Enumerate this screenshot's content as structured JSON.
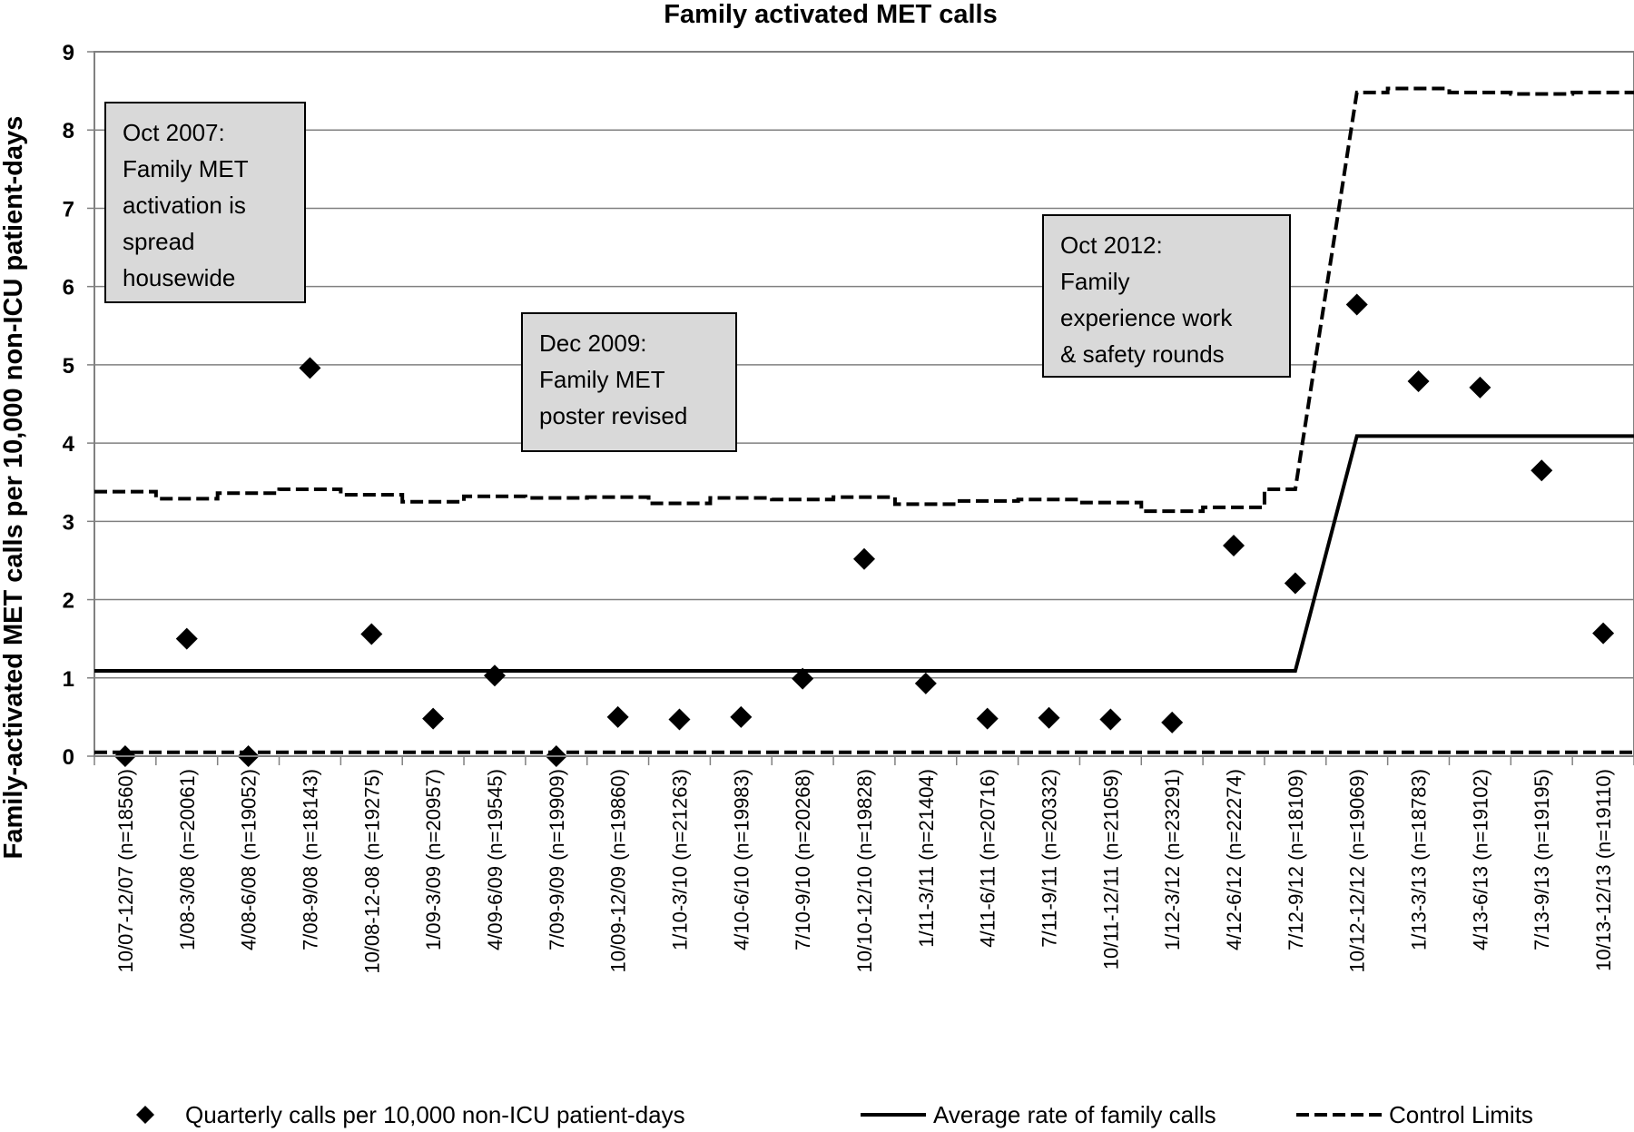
{
  "chart_data": {
    "type": "line",
    "title": "Family activated MET calls",
    "xlabel": "",
    "ylabel": "Family-activated MET calls per 10,000 non-ICU patient-days",
    "ylim": [
      0,
      9
    ],
    "yticks": [
      "0",
      "1",
      "2",
      "3",
      "4",
      "5",
      "6",
      "7",
      "8",
      "9"
    ],
    "grid": true,
    "legend_position": "bottom",
    "categories": [
      "10/07-12/07 (n=18560)",
      "1/08-3/08 (n=20061)",
      "4/08-6/08 (n=19052)",
      "7/08-9/08 (n=18143)",
      "10/08-12-08 (n=19275)",
      "1/09-3/09 (n=20957)",
      "4/09-6/09 (n=19545)",
      "7/09-9/09 (n=19909)",
      "10/09-12/09 (n=19860)",
      "1/10-3/10 (n=21263)",
      "4/10-6/10 (n=19983)",
      "7/10-9/10 (n=20268)",
      "10/10-12/10 (n=19828)",
      "1/11-3/11 (n=21404)",
      "4/11-6/11 (n=20716)",
      "7/11-9/11 (n=20332)",
      "10/11-12/11 (n=21059)",
      "1/12-3/12 (n=23291)",
      "4/12-6/12 (n=22274)",
      "7/12-9/12 (n=18109)",
      "10/12-12/12 (n=19069)",
      "1/13-3/13 (n=18783)",
      "4/13-6/13 (n=19102)",
      "7/13-9/13 (n=19195)",
      "10/13-12/13 (n=19110)"
    ],
    "series": [
      {
        "name": "Quarterly calls per 10,000 non-ICU patient-days",
        "style": "diamond-markers",
        "values": [
          0,
          1.5,
          0,
          4.96,
          1.56,
          0.48,
          1.03,
          0,
          0.5,
          0.47,
          0.5,
          0.99,
          2.52,
          0.93,
          0.48,
          0.49,
          0.47,
          0.43,
          2.69,
          2.21,
          5.77,
          4.79,
          4.71,
          3.65,
          1.57
        ]
      },
      {
        "name": "Average rate of family calls",
        "style": "solid-line",
        "values": [
          1.09,
          1.09,
          1.09,
          1.09,
          1.09,
          1.09,
          1.09,
          1.09,
          1.09,
          1.09,
          1.09,
          1.09,
          1.09,
          1.09,
          1.09,
          1.09,
          1.09,
          1.09,
          1.09,
          1.09,
          4.09,
          4.09,
          4.09,
          4.09,
          4.09
        ]
      },
      {
        "name": "Control Limits",
        "style": "dashed-line",
        "upper": [
          3.38,
          3.29,
          3.36,
          3.41,
          3.34,
          3.25,
          3.32,
          3.3,
          3.31,
          3.23,
          3.3,
          3.28,
          3.31,
          3.22,
          3.26,
          3.28,
          3.24,
          3.13,
          3.18,
          3.41,
          8.48,
          8.53,
          8.48,
          8.46,
          8.48
        ],
        "lower": [
          0.05,
          0.05,
          0.05,
          0.05,
          0.05,
          0.05,
          0.05,
          0.05,
          0.05,
          0.05,
          0.05,
          0.05,
          0.05,
          0.05,
          0.05,
          0.05,
          0.05,
          0.05,
          0.05,
          0.05,
          0.05,
          0.05,
          0.05,
          0.05,
          0.05
        ]
      }
    ],
    "annotations": [
      {
        "lines": [
          "Oct 2007:",
          "Family MET",
          "activation is",
          "spread",
          "housewide"
        ]
      },
      {
        "lines": [
          "Dec 2009:",
          "Family MET",
          "poster revised"
        ]
      },
      {
        "lines": [
          "Oct 2012:",
          "Family",
          "experience work",
          "& safety rounds"
        ]
      }
    ]
  },
  "legend": {
    "items": [
      {
        "label": "Quarterly calls per 10,000 non-ICU patient-days"
      },
      {
        "label": "Average rate of family calls"
      },
      {
        "label": "Control Limits"
      }
    ]
  }
}
